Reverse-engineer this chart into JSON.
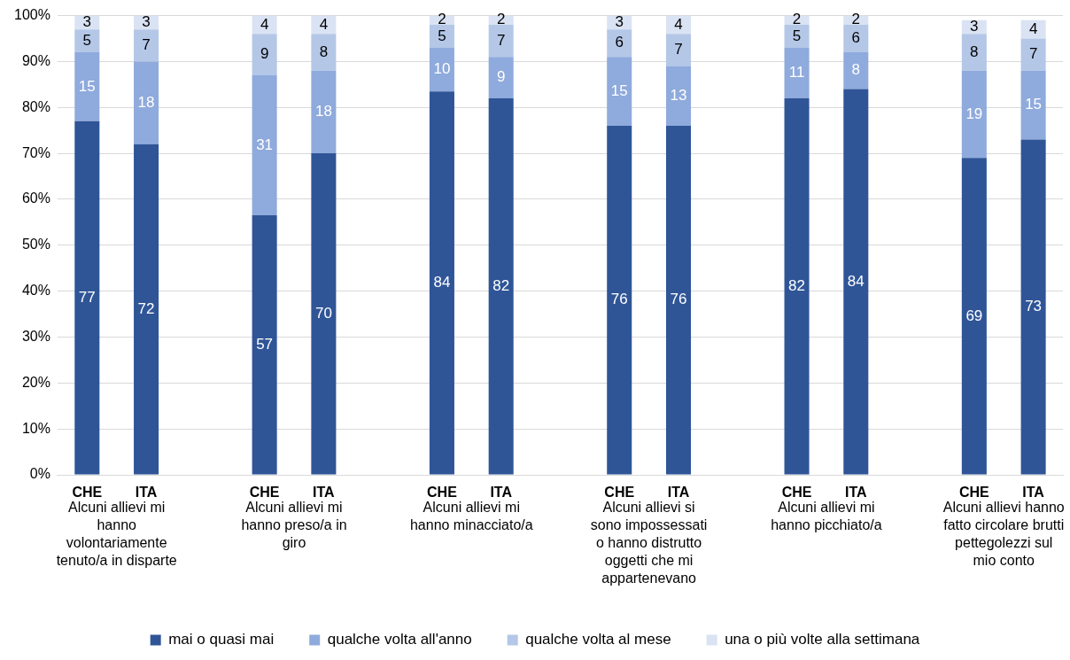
{
  "chart_data": {
    "type": "bar",
    "stacked": true,
    "categories": [
      "CHE",
      "ITA",
      null,
      "CHE",
      "ITA",
      null,
      "CHE",
      "ITA",
      null,
      "CHE",
      "ITA",
      null,
      "CHE",
      "ITA",
      null,
      "CHE",
      "ITA"
    ],
    "series": [
      {
        "name": "mai o quasi mai",
        "color": "#2f5597",
        "values": [
          77,
          72,
          null,
          56.5,
          70,
          null,
          83.5,
          82,
          null,
          76,
          76,
          null,
          82,
          84,
          null,
          69,
          73
        ],
        "value_labels": [
          "77",
          "72",
          null,
          "57",
          "70",
          null,
          "84",
          "82",
          null,
          "76",
          "76",
          null,
          "82",
          "84",
          null,
          "69",
          "73"
        ]
      },
      {
        "name": "qualche volta all'anno",
        "color": "#8faadc",
        "values": [
          15,
          18,
          null,
          30.5,
          18,
          null,
          9.5,
          9,
          null,
          15,
          13,
          null,
          11,
          8,
          null,
          19,
          15
        ],
        "value_labels": [
          "15",
          "18",
          null,
          "31",
          "18",
          null,
          "10",
          "9",
          null,
          "15",
          "13",
          null,
          "11",
          "8",
          null,
          "19",
          "15"
        ]
      },
      {
        "name": "qualche volta al mese",
        "color": "#b4c7e7",
        "values": [
          5,
          7,
          null,
          9,
          8,
          null,
          5,
          7,
          null,
          6,
          7,
          null,
          5,
          6,
          null,
          8,
          7
        ],
        "value_labels": [
          "5",
          "7",
          null,
          "9",
          "8",
          null,
          "5",
          "7",
          null,
          "6",
          "7",
          null,
          "5",
          "6",
          null,
          "8",
          "7"
        ]
      },
      {
        "name": "una o più volte alla settimana",
        "color": "#dae3f3",
        "values": [
          3,
          3,
          null,
          4,
          4,
          null,
          2,
          2,
          null,
          3,
          4,
          null,
          2,
          2,
          null,
          3,
          4
        ],
        "value_labels": [
          "3",
          "3",
          null,
          "4",
          "4",
          null,
          "2",
          "2",
          null,
          "3",
          "4",
          null,
          "2",
          "2",
          null,
          "3",
          "4"
        ]
      }
    ],
    "ylim": [
      0,
      100
    ],
    "yticks": [
      {
        "value": 0,
        "label": "0%"
      },
      {
        "value": 10,
        "label": "10%"
      },
      {
        "value": 20,
        "label": "20%"
      },
      {
        "value": 30,
        "label": "30%"
      },
      {
        "value": 40,
        "label": "40%"
      },
      {
        "value": 50,
        "label": "50%"
      },
      {
        "value": 60,
        "label": "60%"
      },
      {
        "value": 70,
        "label": "70%"
      },
      {
        "value": 80,
        "label": "80%"
      },
      {
        "value": 90,
        "label": "90%"
      },
      {
        "value": 100,
        "label": "100%"
      }
    ],
    "annotations": [
      "Alcuni allievi mi hanno volontariamente tenuto/a in disparte",
      "Alcuni allievi mi hanno preso/a in giro",
      "Alcuni allievi mi hanno minacciato/a",
      "Alcuni allievi si sono impossessati o hanno distrutto oggetti che mi appartenevano",
      "Alcuni allievi mi hanno picchiato/a",
      "Alcuni allievi hanno fatto circolare brutti pettegolezzi sul mio conto"
    ],
    "grid": "y",
    "legend": "bottom"
  }
}
